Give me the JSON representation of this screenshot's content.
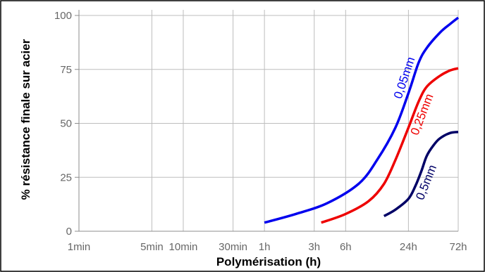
{
  "chart_data": {
    "type": "line",
    "xlabel": "Polymérisation (h)",
    "ylabel": "% résistance finale sur acier",
    "x_scale": "log",
    "x_ticks": [
      {
        "label": "1min",
        "hours": 0.016667
      },
      {
        "label": "5min",
        "hours": 0.083333
      },
      {
        "label": "10min",
        "hours": 0.166667
      },
      {
        "label": "30min",
        "hours": 0.5
      },
      {
        "label": "1h",
        "hours": 1
      },
      {
        "label": "3h",
        "hours": 3
      },
      {
        "label": "6h",
        "hours": 6
      },
      {
        "label": "24h",
        "hours": 24
      },
      {
        "label": "72h",
        "hours": 72
      }
    ],
    "xlim": [
      0.016667,
      72
    ],
    "ylim": [
      0,
      100
    ],
    "y_ticks": [
      0,
      25,
      50,
      75,
      100
    ],
    "grid": true,
    "series": [
      {
        "name": "0,05mm",
        "color": "#0000ee",
        "points": [
          [
            1,
            4
          ],
          [
            2,
            8
          ],
          [
            4,
            13
          ],
          [
            8,
            22
          ],
          [
            12,
            33
          ],
          [
            18,
            48
          ],
          [
            24,
            64
          ],
          [
            30,
            78
          ],
          [
            36,
            85
          ],
          [
            48,
            92
          ],
          [
            60,
            96
          ],
          [
            72,
            99
          ]
        ]
      },
      {
        "name": "0,25mm",
        "color": "#ee0000",
        "points": [
          [
            3.5,
            4
          ],
          [
            6,
            8
          ],
          [
            10,
            14
          ],
          [
            14,
            22
          ],
          [
            18,
            33
          ],
          [
            24,
            48
          ],
          [
            30,
            60
          ],
          [
            36,
            67
          ],
          [
            48,
            72
          ],
          [
            60,
            74.5
          ],
          [
            72,
            75.5
          ]
        ]
      },
      {
        "name": "0,5mm",
        "color": "#000066",
        "points": [
          [
            14,
            7
          ],
          [
            18,
            10
          ],
          [
            24,
            15
          ],
          [
            28,
            21
          ],
          [
            32,
            28
          ],
          [
            36,
            35
          ],
          [
            42,
            40
          ],
          [
            48,
            43
          ],
          [
            60,
            45.5
          ],
          [
            72,
            46
          ]
        ]
      }
    ]
  }
}
